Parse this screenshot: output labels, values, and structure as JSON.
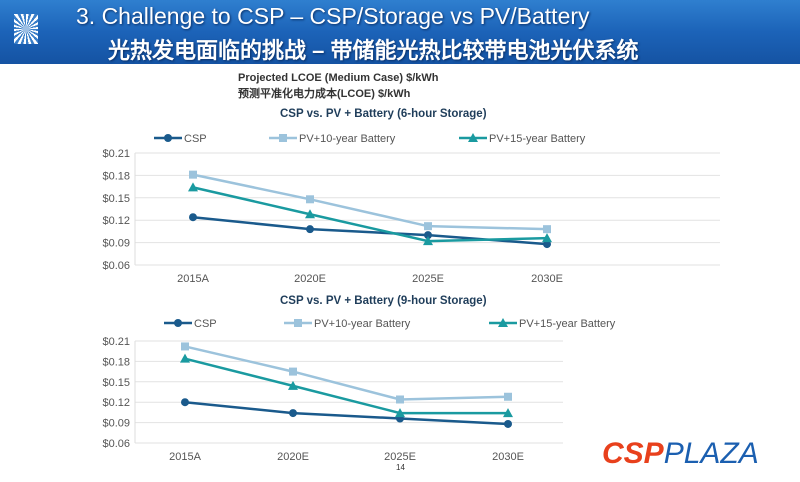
{
  "header": {
    "title": "3. Challenge to CSP – CSP/Storage vs PV/Battery",
    "subtitle": "光热发电面临的挑战 – 带储能光热比较带电池光伏系统"
  },
  "subtitle_en": "Projected LCOE (Medium Case) $/kWh",
  "subtitle_cn": "预测平准化电力成本(LCOE) $/kWh",
  "page_number": "14",
  "brand": {
    "part1": "CSP",
    "part2": "PLAZA"
  },
  "chart_data": [
    {
      "type": "line",
      "title": "CSP vs. PV + Battery (6-hour Storage)",
      "categories": [
        "2015A",
        "2020E",
        "2025E",
        "2030E"
      ],
      "yticks": [
        "$0.06",
        "$0.09",
        "$0.12",
        "$0.15",
        "$0.18",
        "$0.21"
      ],
      "ylim": [
        0.06,
        0.21
      ],
      "grid": true,
      "legend": "top",
      "series": [
        {
          "name": "CSP",
          "values": [
            0.124,
            0.108,
            0.1,
            0.088
          ],
          "color": "#1a5a8c",
          "marker": "circle"
        },
        {
          "name": "PV+10-year Battery",
          "values": [
            0.181,
            0.148,
            0.112,
            0.108
          ],
          "color": "#9cc3dc",
          "marker": "square"
        },
        {
          "name": "PV+15-year Battery",
          "values": [
            0.164,
            0.128,
            0.092,
            0.096
          ],
          "color": "#1a9aa0",
          "marker": "triangle"
        }
      ]
    },
    {
      "type": "line",
      "title": "CSP vs. PV + Battery (9-hour Storage)",
      "categories": [
        "2015A",
        "2020E",
        "2025E",
        "2030E"
      ],
      "yticks": [
        "$0.06",
        "$0.09",
        "$0.12",
        "$0.15",
        "$0.18",
        "$0.21"
      ],
      "ylim": [
        0.06,
        0.21
      ],
      "grid": true,
      "legend": "top",
      "series": [
        {
          "name": "CSP",
          "values": [
            0.12,
            0.104,
            0.096,
            0.088
          ],
          "color": "#1a5a8c",
          "marker": "circle"
        },
        {
          "name": "PV+10-year Battery",
          "values": [
            0.202,
            0.165,
            0.124,
            0.128
          ],
          "color": "#9cc3dc",
          "marker": "square"
        },
        {
          "name": "PV+15-year Battery",
          "values": [
            0.184,
            0.144,
            0.104,
            0.104
          ],
          "color": "#1a9aa0",
          "marker": "triangle"
        }
      ]
    }
  ]
}
